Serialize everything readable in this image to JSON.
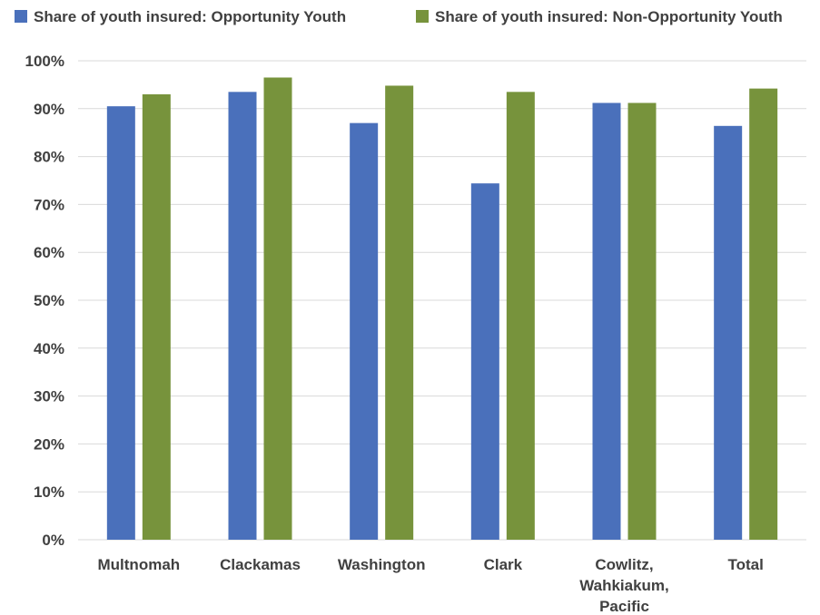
{
  "chart_data": {
    "type": "bar",
    "categories": [
      [
        "Multnomah"
      ],
      [
        "Clackamas"
      ],
      [
        "Washington"
      ],
      [
        "Clark"
      ],
      [
        "Cowlitz,",
        "Wahkiakum,",
        "Pacific"
      ],
      [
        "Total"
      ]
    ],
    "series": [
      {
        "name": "Share of youth insured: Opportunity Youth",
        "color": "#4a70bb",
        "values": [
          90.5,
          93.5,
          87,
          74.4,
          91.2,
          86.4
        ]
      },
      {
        "name": "Share of youth insured: Non-Opportunity Youth",
        "color": "#77933c",
        "values": [
          93,
          96.5,
          94.8,
          93.5,
          91.2,
          94.2
        ]
      }
    ],
    "ylim": [
      0,
      100
    ],
    "yticks": [
      0,
      10,
      20,
      30,
      40,
      50,
      60,
      70,
      80,
      90,
      100
    ],
    "ytick_labels": [
      "0%",
      "10%",
      "20%",
      "30%",
      "40%",
      "50%",
      "60%",
      "70%",
      "80%",
      "90%",
      "100%"
    ],
    "grid": true,
    "legend_position": "top"
  }
}
